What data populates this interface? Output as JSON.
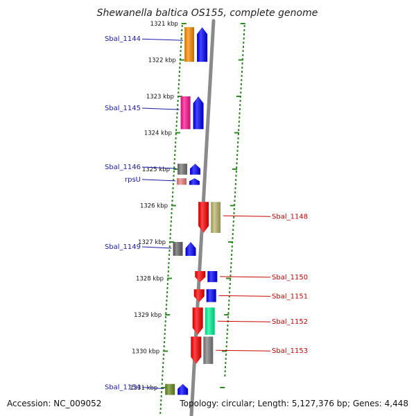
{
  "title": "Shewanella baltica OS155, complete genome",
  "footer": {
    "accession": "Accession: NC_009052",
    "summary": "Topology: circular; Length: 5,127,376 bp; Genes: 4,448"
  },
  "ticks": [
    {
      "label": "1321 kbp"
    },
    {
      "label": "1322 kbp"
    },
    {
      "label": "1323 kbp"
    },
    {
      "label": "1324 kbp"
    },
    {
      "label": "1325 kbp"
    },
    {
      "label": "1326 kbp"
    },
    {
      "label": "1327 kbp"
    },
    {
      "label": "1328 kbp"
    },
    {
      "label": "1329 kbp"
    },
    {
      "label": "1330 kbp"
    },
    {
      "label": "1331 kbp"
    }
  ],
  "genes_left": [
    {
      "label": "Sbal_1144",
      "color": "#ff8c00",
      "pos": 1321.1,
      "len": 0.95
    },
    {
      "label": "Sbal_1145",
      "color": "#ff1493",
      "pos": 1323.0,
      "len": 0.9
    },
    {
      "label": "Sbal_1146",
      "color": "#777777",
      "pos": 1324.85,
      "len": 0.3
    },
    {
      "label": "rpsU",
      "color": "#f08080",
      "pos": 1325.25,
      "len": 0.18
    },
    {
      "label": "Sbal_1149",
      "color": "#666666",
      "pos": 1327.0,
      "len": 0.38
    },
    {
      "label": "Sbal_1154",
      "color": "#6b8e23",
      "pos": 1330.9,
      "len": 0.3
    }
  ],
  "genes_right": [
    {
      "label": "Sbal_1148",
      "color": "#bdb76b",
      "pos": 1325.9,
      "len": 0.85
    },
    {
      "label": "Sbal_1150",
      "color": "#0000ff",
      "pos": 1327.8,
      "len": 0.3
    },
    {
      "label": "Sbal_1151",
      "color": "#0000ff",
      "pos": 1328.3,
      "len": 0.35
    },
    {
      "label": "Sbal_1152",
      "color": "#00fa9a",
      "pos": 1328.8,
      "len": 0.75
    },
    {
      "label": "Sbal_1153",
      "color": "#808080",
      "pos": 1329.6,
      "len": 0.75
    }
  ],
  "colors": {
    "backbone": "#8a8a8a",
    "ruler_dots": "#2e8b22",
    "cds_left": "#0000ff",
    "cds_right": "#ff0000",
    "label_left": "#1a1ab0",
    "label_right": "#cc0000"
  }
}
